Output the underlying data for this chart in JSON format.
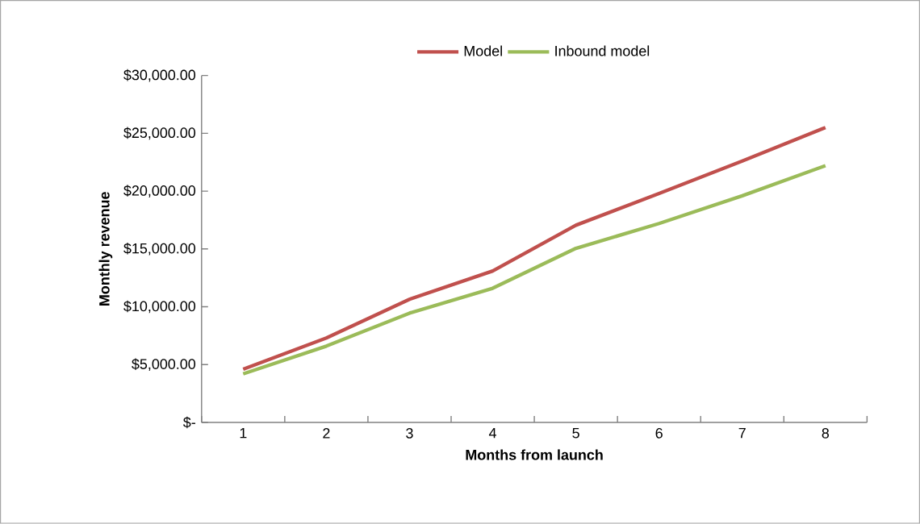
{
  "chart_data": {
    "type": "line",
    "xlabel": "Months from launch",
    "ylabel": "Monthly revenue",
    "categories": [
      "1",
      "2",
      "3",
      "4",
      "5",
      "6",
      "7",
      "8"
    ],
    "series": [
      {
        "name": "Model",
        "color": "#c0504d",
        "values": [
          4600,
          7300,
          10650,
          13100,
          17050,
          19800,
          22600,
          25500
        ]
      },
      {
        "name": "Inbound model",
        "color": "#9bbb59",
        "values": [
          4200,
          6600,
          9450,
          11600,
          15050,
          17200,
          19600,
          22200
        ]
      }
    ],
    "ylim": [
      0,
      30000
    ],
    "yticks": [
      {
        "value": 0,
        "label": "$-"
      },
      {
        "value": 5000,
        "label": "$5,000.00"
      },
      {
        "value": 10000,
        "label": "$10,000.00"
      },
      {
        "value": 15000,
        "label": "$15,000.00"
      },
      {
        "value": 20000,
        "label": "$20,000.00"
      },
      {
        "value": 25000,
        "label": "$25,000.00"
      },
      {
        "value": 30000,
        "label": "$30,000.00"
      }
    ],
    "grid": false,
    "legend": "top",
    "marker": "none",
    "line_style": "solid"
  }
}
